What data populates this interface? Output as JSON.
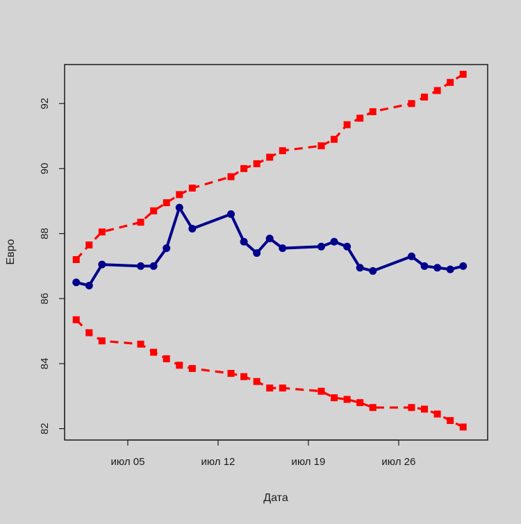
{
  "colors": {
    "background": "#d4d4d4",
    "series_main": "#00008b",
    "series_band": "#ff0000"
  },
  "chart_data": {
    "type": "line",
    "title": "",
    "xlabel": "Дата",
    "ylabel": "Евро",
    "x_tick_labels": [
      "июл 05",
      "июл 12",
      "июл 19",
      "июл 26"
    ],
    "x_tick_days": [
      5,
      12,
      19,
      26
    ],
    "xlim": [
      0.1,
      32.9
    ],
    "ylim": [
      81.65,
      93.2
    ],
    "y_ticks": [
      82,
      84,
      86,
      88,
      90,
      92
    ],
    "grid": false,
    "legend": "none",
    "x": [
      1,
      2,
      3,
      6,
      7,
      8,
      9,
      10,
      13,
      14,
      15,
      16,
      17,
      20,
      21,
      22,
      23,
      24,
      27,
      28,
      29,
      30,
      31
    ],
    "series": [
      {
        "role": "main",
        "style": "solid-circle",
        "values": [
          86.5,
          86.4,
          87.05,
          87.0,
          87.0,
          87.55,
          88.8,
          88.15,
          88.6,
          87.75,
          87.4,
          87.85,
          87.55,
          87.6,
          87.75,
          87.6,
          86.95,
          86.85,
          87.3,
          87.0,
          86.95,
          86.9,
          87.0
        ]
      },
      {
        "role": "upper",
        "style": "dashed-square",
        "values": [
          87.2,
          87.65,
          88.05,
          88.35,
          88.7,
          88.95,
          89.2,
          89.4,
          89.75,
          90.0,
          90.15,
          90.35,
          90.55,
          90.7,
          90.9,
          91.35,
          91.55,
          91.75,
          92.0,
          92.2,
          92.4,
          92.65,
          92.9
        ]
      },
      {
        "role": "lower",
        "style": "dashed-square",
        "values": [
          85.35,
          84.95,
          84.7,
          84.6,
          84.35,
          84.15,
          83.95,
          83.85,
          83.7,
          83.6,
          83.45,
          83.25,
          83.25,
          83.15,
          82.95,
          82.9,
          82.8,
          82.65,
          82.65,
          82.6,
          82.45,
          82.25,
          82.05
        ]
      }
    ]
  }
}
